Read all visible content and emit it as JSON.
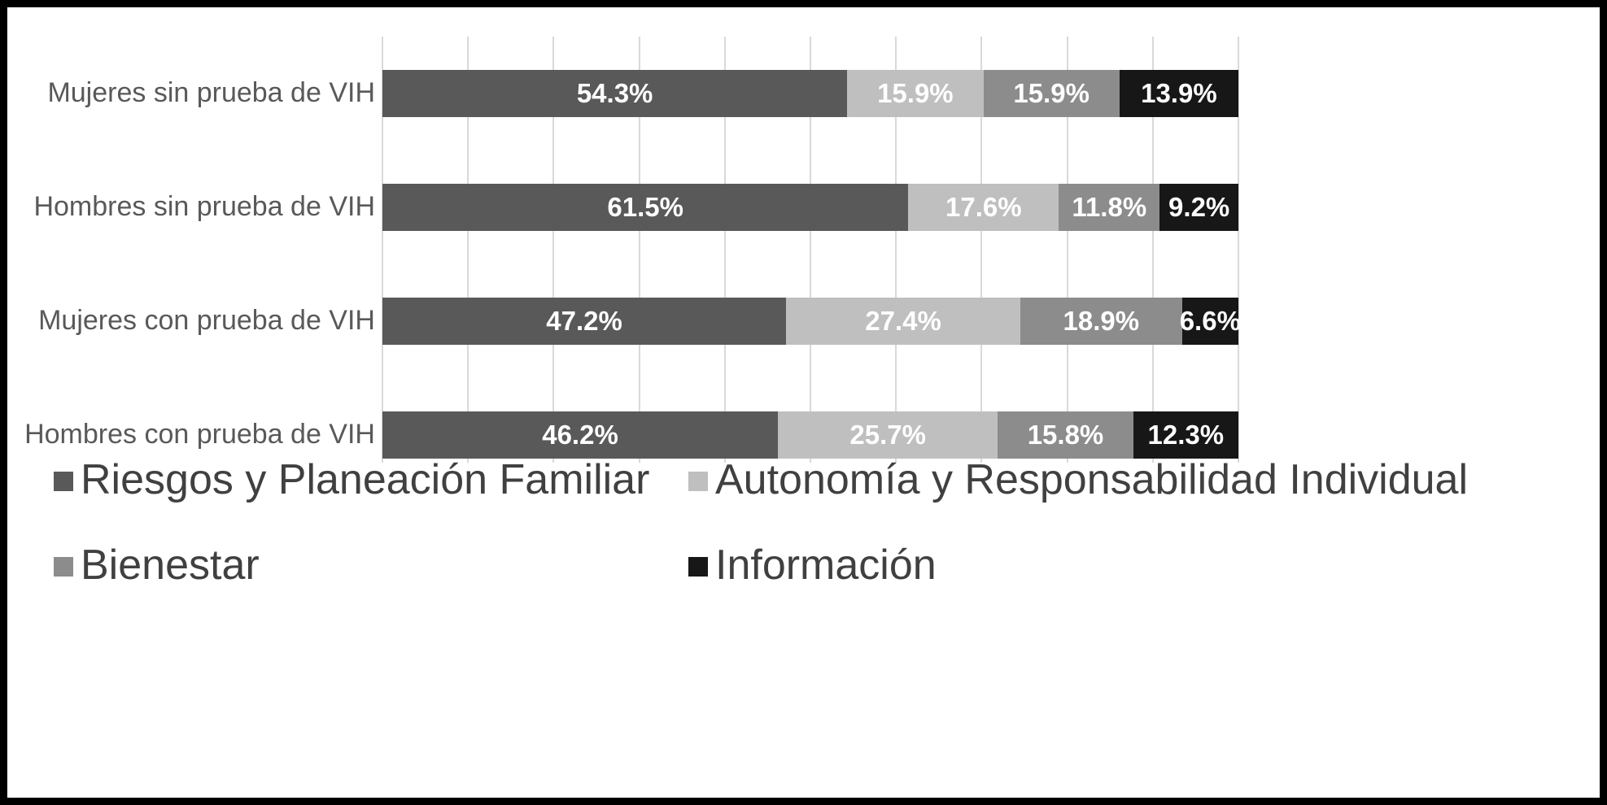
{
  "chart_data": {
    "type": "bar",
    "orientation": "horizontal",
    "stacked": true,
    "stacked_total_percent": 100,
    "title": "",
    "xlabel": "",
    "ylabel": "",
    "xlim": [
      0,
      100
    ],
    "categories": [
      "Mujeres sin prueba de VIH",
      "Hombres sin prueba de VIH",
      "Mujeres con prueba de VIH",
      "Hombres con prueba de VIH"
    ],
    "series": [
      {
        "name": "Riesgos y Planeación Familiar",
        "color": "#595959",
        "values": [
          54.3,
          61.5,
          47.2,
          46.2
        ],
        "labels": [
          "54.3%",
          "61.5%",
          "47.2%",
          "46.2%"
        ]
      },
      {
        "name": "Autonomía y Responsabilidad Individual",
        "color": "#bfbfbf",
        "values": [
          15.9,
          17.6,
          27.4,
          25.7
        ],
        "labels": [
          "15.9%",
          "17.6%",
          "27.4%",
          "25.7%"
        ]
      },
      {
        "name": "Bienestar",
        "color": "#8c8c8c",
        "values": [
          15.9,
          11.8,
          18.9,
          15.8
        ],
        "labels": [
          "15.9%",
          "11.8%",
          "18.9%",
          "15.8%"
        ]
      },
      {
        "name": "Información",
        "color": "#171717",
        "values": [
          13.9,
          9.2,
          6.6,
          12.3
        ],
        "labels": [
          "13.9%",
          "9.2%",
          "6.6%",
          "12.3%"
        ]
      }
    ],
    "gridlines": {
      "show": true,
      "interval_percent": 10,
      "color": "#d9d9d9"
    },
    "legend_position": "bottom",
    "value_label_color": "#ffffff",
    "category_label_color": "#595959",
    "legend_text_color": "#404040"
  }
}
